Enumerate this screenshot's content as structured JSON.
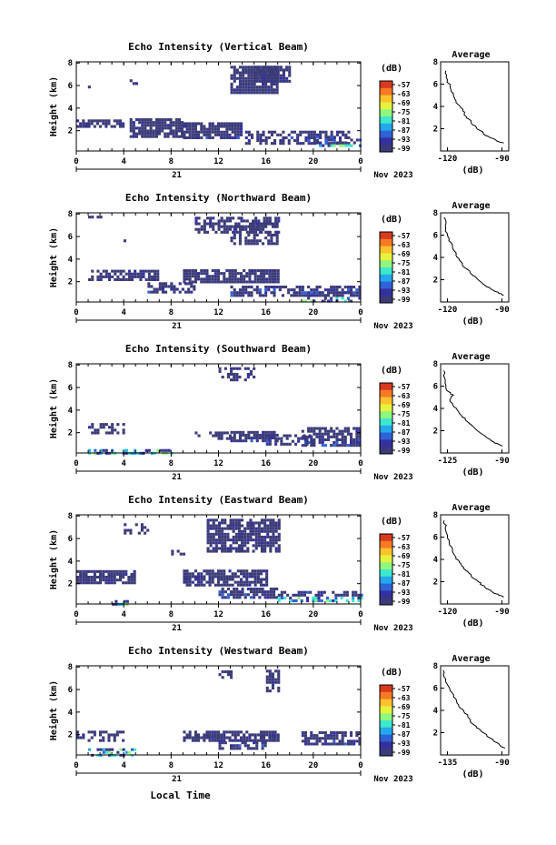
{
  "figure": {
    "xlabel": "Local Time",
    "day_label": "21",
    "month_year": "Nov 2023",
    "colorbar_unit": "(dB)",
    "colorbar_ticks": [
      "-57",
      "-63",
      "-69",
      "-75",
      "-81",
      "-87",
      "-93",
      "-99"
    ],
    "colorbar_colors": [
      "#d83a1f",
      "#f57a25",
      "#fbc22c",
      "#e7f23d",
      "#8ff77d",
      "#3fe7cf",
      "#23a8ec",
      "#2f62d7",
      "#34309f",
      "#3b3b7a"
    ]
  },
  "chart_data": [
    {
      "type": "heatmap",
      "title": "Echo Intensity (Vertical Beam)",
      "ylabel": "Height (km)",
      "xlim": [
        0,
        24
      ],
      "ylim": [
        0,
        8
      ],
      "xticks": [
        "0",
        "4",
        "8",
        "12",
        "16",
        "20",
        "0"
      ],
      "yticks": [
        "2",
        "4",
        "6",
        "8"
      ],
      "profile": {
        "title": "Average",
        "xlabel": "(dB)",
        "xticks": [
          "-120",
          "-90"
        ],
        "xlim": [
          -125,
          -85
        ],
        "x": [
          -122,
          -121,
          -119,
          -117,
          -115,
          -112,
          -110,
          -107,
          -104,
          -100,
          -96,
          -92,
          -88
        ],
        "y": [
          7.2,
          6.4,
          5.5,
          4.8,
          4.2,
          3.6,
          3.1,
          2.6,
          2.1,
          1.6,
          1.2,
          0.9,
          0.7
        ]
      }
    },
    {
      "type": "heatmap",
      "title": "Echo Intensity (Northward Beam)",
      "ylabel": "Height (km)",
      "xlim": [
        0,
        24
      ],
      "ylim": [
        0,
        8
      ],
      "xticks": [
        "0",
        "4",
        "8",
        "12",
        "16",
        "20",
        "0"
      ],
      "yticks": [
        "2",
        "4",
        "6",
        "8"
      ],
      "profile": {
        "title": "Average",
        "xlabel": "(dB)",
        "xticks": [
          "-120",
          "-90"
        ],
        "xlim": [
          -125,
          -85
        ],
        "x": [
          -123,
          -122,
          -120,
          -118,
          -116,
          -113,
          -110,
          -107,
          -103,
          -99,
          -95,
          -91,
          -88
        ],
        "y": [
          7.6,
          6.6,
          5.7,
          4.9,
          4.2,
          3.6,
          3.0,
          2.5,
          2.0,
          1.5,
          1.1,
          0.8,
          0.6
        ]
      }
    },
    {
      "type": "heatmap",
      "title": "Echo Intensity (Southward Beam)",
      "ylabel": "Height (km)",
      "xlim": [
        0,
        24
      ],
      "ylim": [
        0,
        8
      ],
      "xticks": [
        "0",
        "4",
        "8",
        "12",
        "16",
        "20",
        "0"
      ],
      "yticks": [
        "2",
        "4",
        "6",
        "8"
      ],
      "profile": {
        "title": "Average",
        "xlabel": "(dB)",
        "xticks": [
          "-125",
          "-90"
        ],
        "xlim": [
          -128,
          -85
        ],
        "x": [
          -126,
          -125,
          -124,
          -120,
          -122,
          -118,
          -115,
          -111,
          -107,
          -103,
          -98,
          -94,
          -89
        ],
        "y": [
          7.4,
          6.5,
          5.6,
          5.2,
          4.6,
          4.0,
          3.4,
          2.8,
          2.3,
          1.8,
          1.3,
          0.9,
          0.6
        ]
      }
    },
    {
      "type": "heatmap",
      "title": "Echo Intensity (Eastward Beam)",
      "ylabel": "Height (km)",
      "xlim": [
        0,
        24
      ],
      "ylim": [
        0,
        8
      ],
      "xticks": [
        "0",
        "4",
        "8",
        "12",
        "16",
        "20",
        "0"
      ],
      "yticks": [
        "2",
        "4",
        "6",
        "8"
      ],
      "profile": {
        "title": "Average",
        "xlabel": "(dB)",
        "xticks": [
          "-120",
          "-90"
        ],
        "xlim": [
          -125,
          -85
        ],
        "x": [
          -123,
          -122,
          -120,
          -118,
          -116,
          -113,
          -110,
          -107,
          -103,
          -99,
          -95,
          -91,
          -88
        ],
        "y": [
          7.5,
          6.6,
          5.7,
          4.9,
          4.2,
          3.6,
          3.0,
          2.5,
          2.0,
          1.5,
          1.1,
          0.8,
          0.6
        ]
      }
    },
    {
      "type": "heatmap",
      "title": "Echo Intensity (Westward Beam)",
      "ylabel": "Height (km)",
      "xlim": [
        0,
        24
      ],
      "ylim": [
        0,
        8
      ],
      "xticks": [
        "0",
        "4",
        "8",
        "12",
        "16",
        "20",
        "0"
      ],
      "yticks": [
        "2",
        "4",
        "6",
        "8"
      ],
      "profile": {
        "title": "Average",
        "xlabel": "(dB)",
        "xticks": [
          "-135",
          "-90"
        ],
        "xlim": [
          -138,
          -85
        ],
        "x": [
          -136,
          -134,
          -131,
          -128,
          -124,
          -120,
          -116,
          -112,
          -107,
          -102,
          -97,
          -92,
          -88
        ],
        "y": [
          7.6,
          6.8,
          6.0,
          5.2,
          4.5,
          3.9,
          3.3,
          2.7,
          2.2,
          1.7,
          1.3,
          0.9,
          0.6
        ]
      }
    }
  ]
}
